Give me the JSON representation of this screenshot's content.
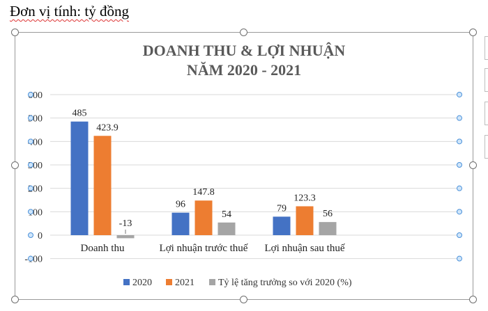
{
  "unit_label": "Đơn vị tính: tỷ đồng",
  "chart_data": {
    "type": "bar",
    "title": [
      "DOANH THU & LỢI NHUẬN",
      "NĂM 2020 - 2021"
    ],
    "categories": [
      "Doanh thu",
      "Lợi nhuận trước thuế",
      "Lợi nhuận sau thuế"
    ],
    "series": [
      {
        "name": "2020",
        "color": "#4472C4",
        "values": [
          485,
          96,
          79
        ]
      },
      {
        "name": "2021",
        "color": "#ED7D31",
        "values": [
          423.9,
          147.8,
          123.3
        ]
      },
      {
        "name": "Tỷ lệ tăng trưởng so với 2020 (%)",
        "color": "#A5A5A5",
        "values": [
          -13,
          54,
          56
        ]
      }
    ],
    "yticks": [
      -100,
      0,
      100,
      200,
      300,
      400,
      500,
      600
    ],
    "ylim": [
      -100,
      600
    ],
    "grid": true,
    "legend_position": "bottom",
    "data_labels": true
  }
}
